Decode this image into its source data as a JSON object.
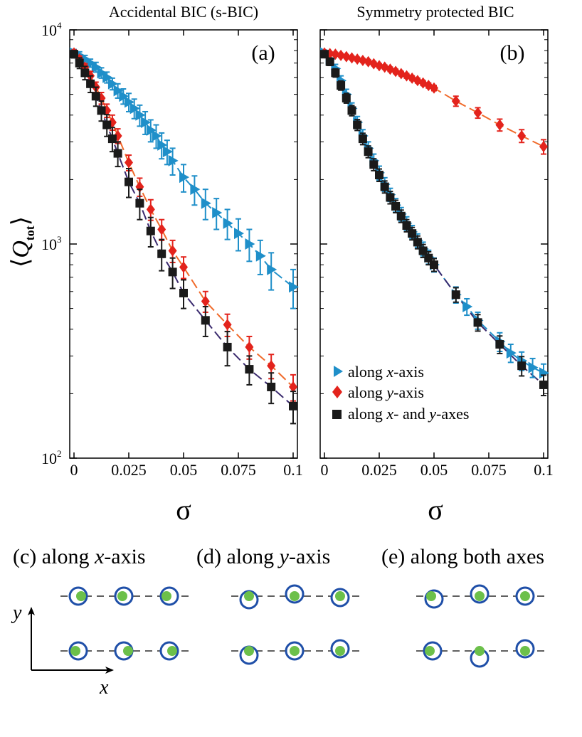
{
  "figure": {
    "y_axis_label": "Q",
    "y_axis_subscript": "tot",
    "legend": [
      {
        "prefix": "along ",
        "italic": "x",
        "suffix": "-axis"
      },
      {
        "prefix": "along ",
        "italic": "y",
        "suffix": "-axis"
      },
      {
        "prefix": "along ",
        "italic": "x",
        "mid": "- and ",
        "italic2": "y",
        "suffix": "-axes"
      }
    ]
  },
  "chart_data": [
    {
      "type": "scatter",
      "panel": "(a)",
      "title": "Accidental BIC (s-BIC)",
      "xlabel": "σ",
      "ylabel": "⟨Q_tot⟩",
      "xlim": [
        0,
        0.1
      ],
      "ylim": [
        100,
        10000
      ],
      "yscale": "log",
      "xticks": [
        "0",
        "0.025",
        "0.05",
        "0.075",
        "0.1"
      ],
      "yticks": [
        "10^2",
        "10^3",
        "10^4"
      ],
      "series": [
        {
          "name": "along x-axis",
          "color": "#1f8fc9",
          "marker": "triangle-right",
          "x": [
            0,
            0.0025,
            0.005,
            0.0075,
            0.01,
            0.0125,
            0.015,
            0.0175,
            0.02,
            0.0225,
            0.025,
            0.0275,
            0.03,
            0.0325,
            0.035,
            0.0375,
            0.04,
            0.0425,
            0.045,
            0.05,
            0.055,
            0.06,
            0.065,
            0.07,
            0.075,
            0.08,
            0.085,
            0.09,
            0.1
          ],
          "y": [
            7800,
            7600,
            7300,
            7000,
            6700,
            6300,
            6000,
            5600,
            5200,
            4900,
            4600,
            4300,
            4000,
            3700,
            3400,
            3200,
            2900,
            2700,
            2450,
            2050,
            1800,
            1550,
            1400,
            1250,
            1120,
            1000,
            880,
            760,
            630
          ],
          "err": [
            300,
            300,
            300,
            300,
            350,
            350,
            350,
            350,
            400,
            400,
            450,
            450,
            450,
            450,
            400,
            400,
            400,
            350,
            350,
            300,
            280,
            250,
            230,
            200,
            190,
            170,
            160,
            150,
            130
          ]
        },
        {
          "name": "along y-axis",
          "color": "#e3231c",
          "marker": "diamond",
          "x": [
            0,
            0.0025,
            0.005,
            0.0075,
            0.01,
            0.0125,
            0.015,
            0.0175,
            0.02,
            0.025,
            0.03,
            0.035,
            0.04,
            0.045,
            0.05,
            0.06,
            0.07,
            0.08,
            0.09,
            0.1
          ],
          "y": [
            7800,
            7300,
            6700,
            6100,
            5400,
            4800,
            4200,
            3700,
            3200,
            2400,
            1850,
            1450,
            1170,
            930,
            780,
            540,
            420,
            330,
            270,
            215
          ],
          "err": [
            250,
            250,
            250,
            300,
            300,
            300,
            300,
            300,
            250,
            200,
            180,
            160,
            130,
            110,
            90,
            60,
            50,
            40,
            35,
            30
          ]
        },
        {
          "name": "along x- and y-axes",
          "color": "#1a1a1a",
          "marker": "square",
          "x": [
            0,
            0.0025,
            0.005,
            0.0075,
            0.01,
            0.0125,
            0.015,
            0.0175,
            0.02,
            0.025,
            0.03,
            0.035,
            0.04,
            0.045,
            0.05,
            0.06,
            0.07,
            0.08,
            0.09,
            0.1
          ],
          "y": [
            7700,
            7000,
            6300,
            5600,
            4900,
            4200,
            3600,
            3100,
            2650,
            1950,
            1550,
            1150,
            900,
            740,
            590,
            440,
            330,
            260,
            215,
            175
          ],
          "err": [
            300,
            400,
            450,
            500,
            500,
            450,
            420,
            400,
            350,
            300,
            250,
            180,
            150,
            120,
            90,
            70,
            60,
            40,
            35,
            30
          ]
        }
      ]
    },
    {
      "type": "scatter",
      "panel": "(b)",
      "title": "Symmetry protected BIC",
      "xlabel": "σ",
      "ylabel": "⟨Q_tot⟩",
      "xlim": [
        0,
        0.1
      ],
      "ylim": [
        100,
        10000
      ],
      "yscale": "log",
      "xticks": [
        "0",
        "0.025",
        "0.05",
        "0.075",
        "0.1"
      ],
      "legend_position": "bottom-left",
      "series": [
        {
          "name": "along x-axis",
          "color": "#1f8fc9",
          "marker": "triangle-right",
          "x": [
            0,
            0.0025,
            0.005,
            0.0075,
            0.01,
            0.0125,
            0.015,
            0.0175,
            0.02,
            0.0225,
            0.025,
            0.0275,
            0.03,
            0.0325,
            0.035,
            0.0375,
            0.04,
            0.0425,
            0.045,
            0.0475,
            0.05,
            0.06,
            0.065,
            0.07,
            0.08,
            0.085,
            0.09,
            0.095,
            0.1
          ],
          "y": [
            7800,
            7300,
            6600,
            5800,
            5000,
            4300,
            3700,
            3200,
            2800,
            2450,
            2150,
            1900,
            1700,
            1520,
            1380,
            1250,
            1140,
            1040,
            950,
            870,
            800,
            580,
            510,
            440,
            350,
            310,
            285,
            265,
            250
          ],
          "err": [
            250,
            300,
            300,
            300,
            280,
            260,
            240,
            220,
            200,
            180,
            160,
            140,
            120,
            110,
            100,
            90,
            80,
            75,
            70,
            65,
            60,
            50,
            45,
            40,
            35,
            30,
            28,
            27,
            25
          ]
        },
        {
          "name": "along y-axis",
          "color": "#e3231c",
          "marker": "diamond",
          "x": [
            0,
            0.0025,
            0.005,
            0.0075,
            0.01,
            0.0125,
            0.015,
            0.0175,
            0.02,
            0.0225,
            0.025,
            0.0275,
            0.03,
            0.0325,
            0.035,
            0.0375,
            0.04,
            0.0425,
            0.045,
            0.0475,
            0.05,
            0.06,
            0.07,
            0.08,
            0.09,
            0.1
          ],
          "y": [
            7800,
            7750,
            7700,
            7600,
            7500,
            7400,
            7300,
            7200,
            7100,
            6950,
            6800,
            6700,
            6550,
            6400,
            6250,
            6100,
            5950,
            5800,
            5650,
            5500,
            5350,
            4650,
            4100,
            3600,
            3200,
            2850
          ],
          "err": [
            150,
            150,
            150,
            150,
            150,
            150,
            150,
            150,
            150,
            150,
            150,
            150,
            150,
            150,
            150,
            150,
            150,
            150,
            150,
            150,
            150,
            250,
            230,
            230,
            220,
            220
          ]
        },
        {
          "name": "along x- and y-axes",
          "color": "#1a1a1a",
          "marker": "square",
          "x": [
            0,
            0.0025,
            0.005,
            0.0075,
            0.01,
            0.0125,
            0.015,
            0.0175,
            0.02,
            0.0225,
            0.025,
            0.0275,
            0.03,
            0.0325,
            0.035,
            0.0375,
            0.04,
            0.0425,
            0.045,
            0.0475,
            0.05,
            0.06,
            0.07,
            0.08,
            0.09,
            0.1
          ],
          "y": [
            7700,
            7100,
            6300,
            5500,
            4800,
            4200,
            3600,
            3100,
            2700,
            2350,
            2100,
            1850,
            1650,
            1500,
            1350,
            1220,
            1120,
            1020,
            930,
            860,
            800,
            580,
            430,
            340,
            270,
            220
          ],
          "err": [
            250,
            280,
            280,
            270,
            250,
            230,
            210,
            190,
            170,
            150,
            140,
            120,
            110,
            100,
            90,
            80,
            75,
            70,
            65,
            60,
            55,
            45,
            38,
            32,
            28,
            24
          ]
        }
      ]
    }
  ],
  "schematics": {
    "ring_color": "#1f4fa8",
    "dot_color": "#6cc04a",
    "x_axis_label": "x",
    "y_axis_label": "y",
    "panels": [
      {
        "tag": "(c)",
        "prefix": "along ",
        "italic": "x",
        "suffix": "-axis"
      },
      {
        "tag": "(d)",
        "prefix": "along ",
        "italic": "y",
        "suffix": "-axis"
      },
      {
        "tag": "(e)",
        "prefix": "along both axes",
        "italic": "",
        "suffix": ""
      }
    ]
  }
}
